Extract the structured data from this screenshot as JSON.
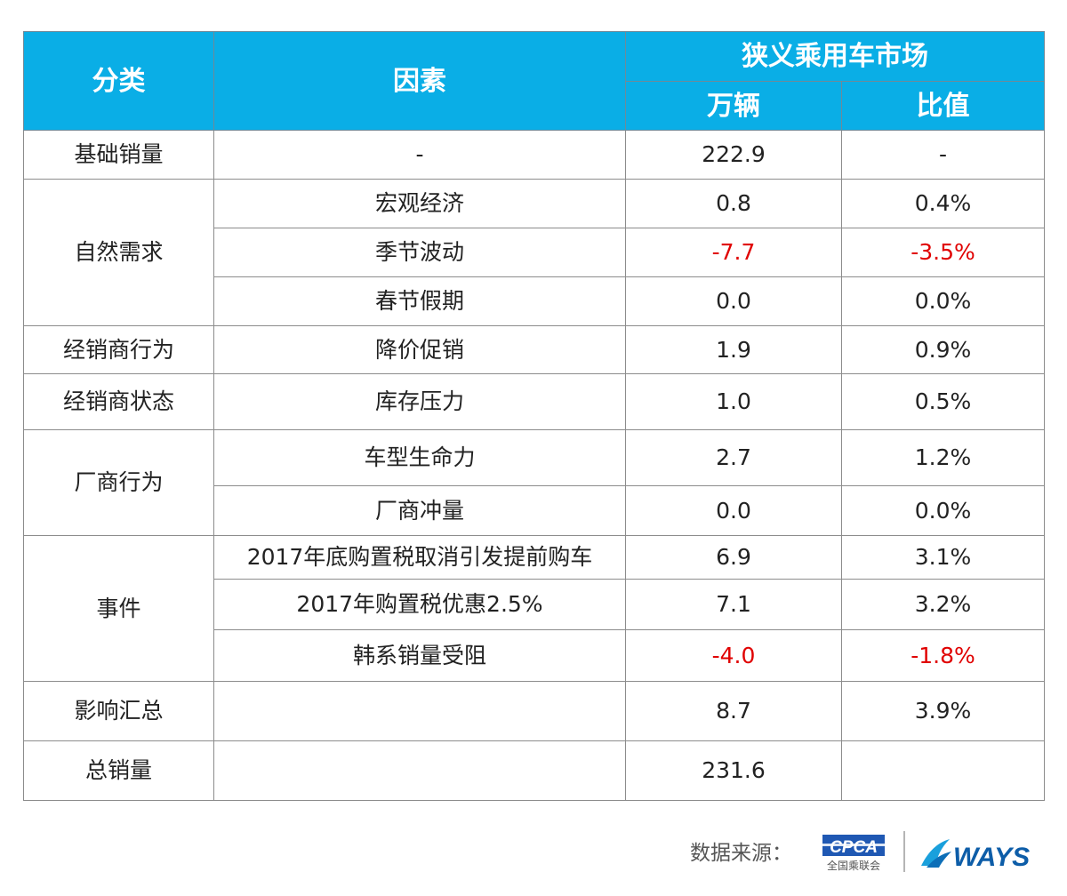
{
  "header": {
    "category": "分类",
    "factor": "因素",
    "market": "狭义乘用车市场",
    "units": "万辆",
    "ratio": "比值"
  },
  "rows": [
    {
      "category": "基础销量",
      "factor": "-",
      "units": "222.9",
      "ratio": "-"
    },
    {
      "category": "自然需求",
      "factor": "宏观经济",
      "units": "0.8",
      "ratio": "0.4%"
    },
    {
      "factor": "季节波动",
      "units": "-7.7",
      "ratio": "-3.5%"
    },
    {
      "factor": "春节假期",
      "units": "0.0",
      "ratio": "0.0%"
    },
    {
      "category": "经销商行为",
      "factor": "降价促销",
      "units": "1.9",
      "ratio": "0.9%"
    },
    {
      "category": "经销商状态",
      "factor": "库存压力",
      "units": "1.0",
      "ratio": "0.5%"
    },
    {
      "category": "厂商行为",
      "factor": "车型生命力",
      "units": "2.7",
      "ratio": "1.2%"
    },
    {
      "factor": "厂商冲量",
      "units": "0.0",
      "ratio": "0.0%"
    },
    {
      "category": "事件",
      "factor": "2017年底购置税取消引发提前购车",
      "units": "6.9",
      "ratio": "3.1%"
    },
    {
      "factor": "2017年购置税优惠2.5%",
      "units": "7.1",
      "ratio": "3.2%"
    },
    {
      "factor": "韩系销量受阻",
      "units": "-4.0",
      "ratio": "-1.8%"
    },
    {
      "category": "影响汇总",
      "factor": "",
      "units": "8.7",
      "ratio": "3.9%"
    },
    {
      "category": "总销量",
      "factor": "",
      "units": "231.6",
      "ratio": ""
    }
  ],
  "footer": {
    "source_label": "数据来源：",
    "cpca_logo_text": "CPCA",
    "cpca_logo_subtext": "全国乘联会",
    "ways_logo_text": "WAYS"
  },
  "colors": {
    "header_bg": "#0aaee6",
    "negative": "#e00000"
  }
}
